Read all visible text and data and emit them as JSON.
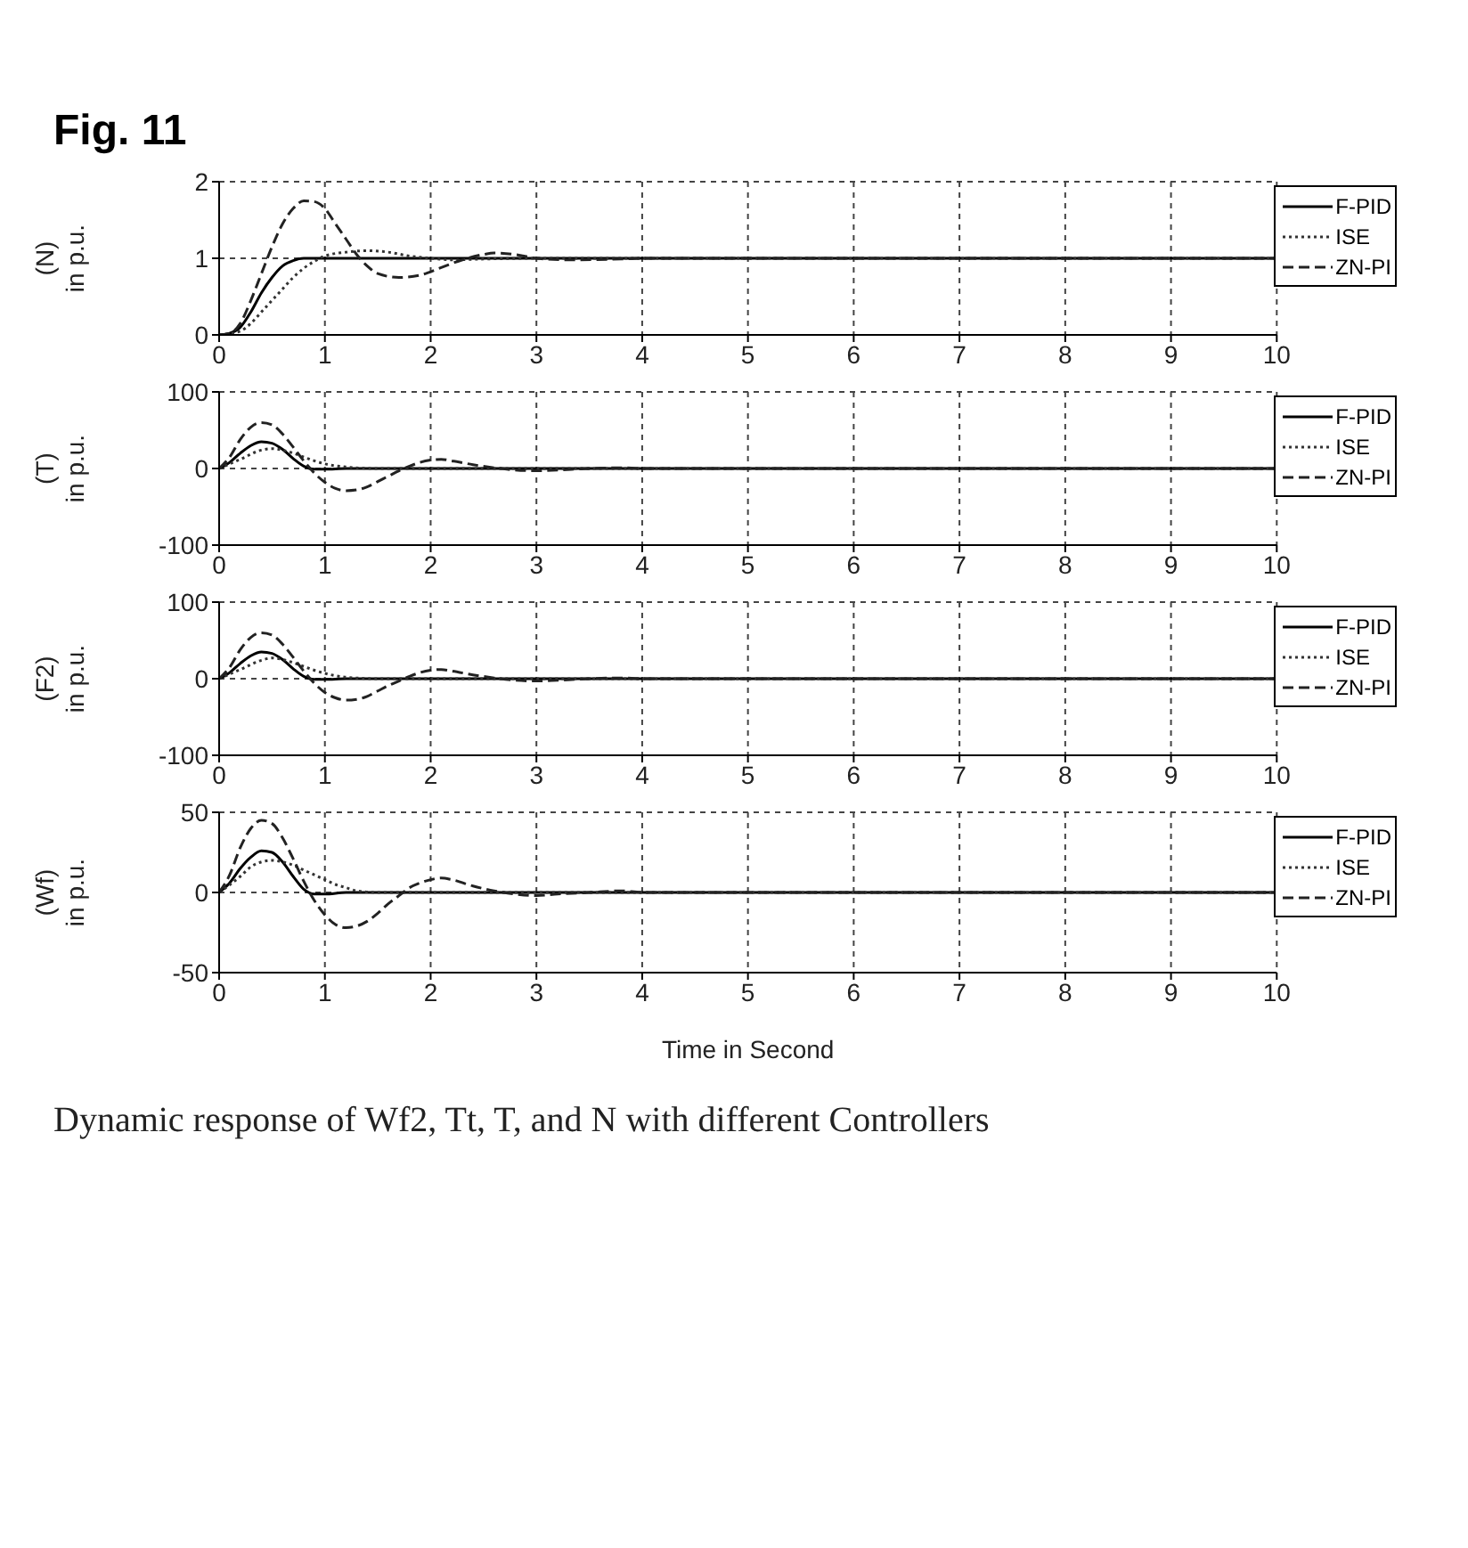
{
  "chart_data": [
    {
      "type": "line",
      "title": "Fig. 11",
      "ylabel": "(N) in p.u.",
      "xlim": [
        0,
        10
      ],
      "xticks": [
        0,
        1,
        2,
        3,
        4,
        5,
        6,
        7,
        8,
        9,
        10
      ],
      "ylim": [
        0,
        2
      ],
      "yticks": [
        0,
        1,
        2
      ],
      "grid": true,
      "legend": "right",
      "series": [
        {
          "name": "F-PID",
          "color": "#000000",
          "line_style": "solid",
          "x": [
            0,
            0.1,
            0.2,
            0.3,
            0.4,
            0.5,
            0.6,
            0.7,
            0.8,
            1,
            10
          ],
          "values": [
            0,
            0.02,
            0.1,
            0.3,
            0.55,
            0.75,
            0.9,
            0.97,
            1.0,
            1.0,
            1
          ]
        },
        {
          "name": "ISE",
          "color": "#333333",
          "line_style": "dotted",
          "x": [
            0,
            0.2,
            0.3,
            0.4,
            0.5,
            0.6,
            0.7,
            0.8,
            0.9,
            1.0,
            1.2,
            1.4,
            1.6,
            1.8,
            2.0,
            2.2,
            2.5,
            3,
            10
          ],
          "values": [
            0,
            0.05,
            0.15,
            0.3,
            0.45,
            0.6,
            0.75,
            0.87,
            0.96,
            1.03,
            1.08,
            1.1,
            1.08,
            1.03,
            1.0,
            0.98,
            0.99,
            1,
            1
          ]
        },
        {
          "name": "ZN-PI",
          "color": "#222222",
          "line_style": "dashed",
          "x": [
            0,
            0.1,
            0.2,
            0.3,
            0.4,
            0.5,
            0.6,
            0.7,
            0.8,
            0.9,
            1.0,
            1.1,
            1.2,
            1.3,
            1.4,
            1.5,
            1.7,
            1.9,
            2.1,
            2.3,
            2.5,
            2.6,
            2.8,
            3.0,
            3.3,
            3.8,
            4,
            10
          ],
          "values": [
            0,
            0.02,
            0.15,
            0.45,
            0.8,
            1.15,
            1.45,
            1.65,
            1.75,
            1.74,
            1.65,
            1.45,
            1.25,
            1.05,
            0.9,
            0.8,
            0.75,
            0.78,
            0.88,
            0.98,
            1.05,
            1.07,
            1.05,
            1.0,
            0.98,
            0.99,
            1,
            1
          ]
        }
      ]
    },
    {
      "type": "line",
      "ylabel": "(T) in p.u.",
      "xlim": [
        0,
        10
      ],
      "xticks": [
        0,
        1,
        2,
        3,
        4,
        5,
        6,
        7,
        8,
        9,
        10
      ],
      "ylim": [
        -100,
        100
      ],
      "yticks": [
        -100,
        0,
        100
      ],
      "grid": true,
      "legend": "right",
      "series": [
        {
          "name": "F-PID",
          "color": "#000000",
          "line_style": "solid",
          "x": [
            0,
            0.1,
            0.2,
            0.3,
            0.4,
            0.5,
            0.6,
            0.7,
            0.8,
            0.9,
            1.0,
            1.2,
            10
          ],
          "values": [
            0,
            8,
            20,
            30,
            35,
            33,
            25,
            13,
            3,
            -1,
            -1,
            0,
            0
          ]
        },
        {
          "name": "ISE",
          "color": "#333333",
          "line_style": "dotted",
          "x": [
            0,
            0.2,
            0.4,
            0.5,
            0.6,
            0.7,
            0.8,
            0.9,
            1.0,
            1.2,
            1.5,
            10
          ],
          "values": [
            0,
            12,
            24,
            26,
            24,
            20,
            15,
            10,
            6,
            2,
            0,
            0
          ]
        },
        {
          "name": "ZN-PI",
          "color": "#222222",
          "line_style": "dashed",
          "x": [
            0,
            0.1,
            0.2,
            0.3,
            0.4,
            0.5,
            0.6,
            0.7,
            0.8,
            0.9,
            1.0,
            1.1,
            1.2,
            1.3,
            1.4,
            1.5,
            1.6,
            1.7,
            1.8,
            1.9,
            2.0,
            2.1,
            2.2,
            2.4,
            2.6,
            2.8,
            3.0,
            3.2,
            3.5,
            3.8,
            4,
            10
          ],
          "values": [
            0,
            15,
            38,
            54,
            60,
            57,
            45,
            28,
            10,
            -6,
            -18,
            -26,
            -29,
            -28,
            -24,
            -17,
            -10,
            -3,
            3,
            8,
            11,
            12,
            10,
            5,
            1,
            -2,
            -3,
            -2,
            0,
            1,
            0,
            0
          ]
        }
      ]
    },
    {
      "type": "line",
      "ylabel": "(F2) in p.u.",
      "xlim": [
        0,
        10
      ],
      "xticks": [
        0,
        1,
        2,
        3,
        4,
        5,
        6,
        7,
        8,
        9,
        10
      ],
      "ylim": [
        -100,
        100
      ],
      "yticks": [
        -100,
        0,
        100
      ],
      "grid": true,
      "legend": "right",
      "series": [
        {
          "name": "F-PID",
          "color": "#000000",
          "line_style": "solid",
          "x": [
            0,
            0.1,
            0.2,
            0.3,
            0.4,
            0.5,
            0.6,
            0.7,
            0.8,
            0.9,
            1.0,
            1.2,
            10
          ],
          "values": [
            0,
            8,
            20,
            30,
            35,
            33,
            25,
            13,
            3,
            -1,
            -1,
            0,
            0
          ]
        },
        {
          "name": "ISE",
          "color": "#333333",
          "line_style": "dotted",
          "x": [
            0,
            0.2,
            0.4,
            0.5,
            0.6,
            0.7,
            0.8,
            0.9,
            1.0,
            1.2,
            1.5,
            10
          ],
          "values": [
            0,
            12,
            24,
            27,
            25,
            21,
            16,
            11,
            7,
            2,
            0,
            0
          ]
        },
        {
          "name": "ZN-PI",
          "color": "#222222",
          "line_style": "dashed",
          "x": [
            0,
            0.1,
            0.2,
            0.3,
            0.4,
            0.5,
            0.6,
            0.7,
            0.8,
            0.9,
            1.0,
            1.1,
            1.2,
            1.3,
            1.4,
            1.5,
            1.6,
            1.7,
            1.8,
            1.9,
            2.0,
            2.1,
            2.2,
            2.4,
            2.6,
            2.8,
            3.0,
            3.2,
            3.5,
            3.8,
            4,
            10
          ],
          "values": [
            0,
            15,
            38,
            54,
            60,
            57,
            45,
            28,
            10,
            -6,
            -18,
            -25,
            -28,
            -27,
            -23,
            -16,
            -9,
            -3,
            3,
            8,
            11,
            12,
            10,
            5,
            1,
            -2,
            -3,
            -2,
            0,
            1,
            0,
            0
          ]
        }
      ]
    },
    {
      "type": "line",
      "ylabel": "(Wf) in p.u.",
      "xlabel": "Time in Second",
      "xlim": [
        0,
        10
      ],
      "xticks": [
        0,
        1,
        2,
        3,
        4,
        5,
        6,
        7,
        8,
        9,
        10
      ],
      "ylim": [
        -50,
        50
      ],
      "yticks": [
        -50,
        0,
        50
      ],
      "grid": true,
      "legend": "right",
      "annotations": [
        "Dynamic response of Wf2, Tt, T, and N with different Controllers"
      ],
      "series": [
        {
          "name": "F-PID",
          "color": "#000000",
          "line_style": "solid",
          "x": [
            0,
            0.1,
            0.2,
            0.3,
            0.4,
            0.5,
            0.6,
            0.7,
            0.8,
            0.9,
            1.0,
            1.2,
            10
          ],
          "values": [
            0,
            6,
            15,
            22,
            26,
            25,
            19,
            10,
            2,
            -1,
            -1,
            0,
            0
          ]
        },
        {
          "name": "ISE",
          "color": "#333333",
          "line_style": "dotted",
          "x": [
            0,
            0.2,
            0.3,
            0.4,
            0.5,
            0.6,
            0.7,
            0.8,
            0.9,
            1.0,
            1.1,
            1.2,
            1.3,
            1.5,
            10
          ],
          "values": [
            0,
            10,
            16,
            19,
            20,
            19,
            17,
            14,
            11,
            8,
            5,
            3,
            1,
            0,
            0
          ]
        },
        {
          "name": "ZN-PI",
          "color": "#222222",
          "line_style": "dashed",
          "x": [
            0,
            0.1,
            0.2,
            0.3,
            0.4,
            0.5,
            0.6,
            0.7,
            0.8,
            0.9,
            1.0,
            1.1,
            1.2,
            1.3,
            1.4,
            1.5,
            1.6,
            1.7,
            1.8,
            1.9,
            2.0,
            2.1,
            2.2,
            2.4,
            2.6,
            2.8,
            3.0,
            3.2,
            3.5,
            3.8,
            4,
            10
          ],
          "values": [
            0,
            11,
            28,
            40,
            45,
            43,
            34,
            21,
            7,
            -5,
            -14,
            -20,
            -22,
            -21,
            -18,
            -13,
            -7,
            -2,
            3,
            6,
            8,
            9,
            8,
            4,
            1,
            -1,
            -2,
            -1,
            0,
            1,
            0,
            0
          ]
        }
      ]
    }
  ]
}
